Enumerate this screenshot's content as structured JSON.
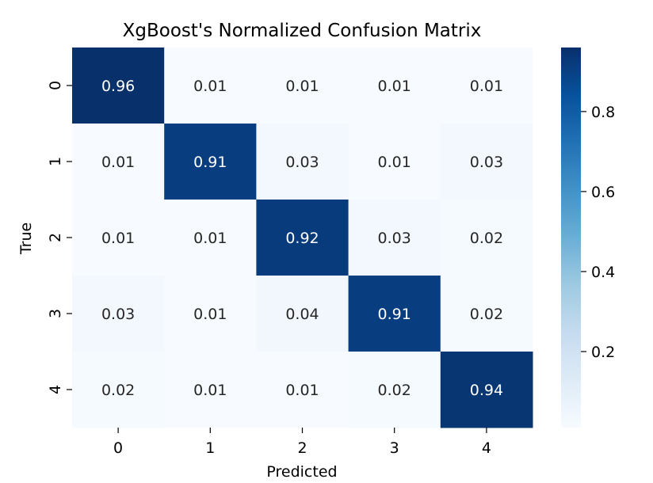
{
  "chart_data": {
    "type": "heatmap",
    "title": "XgBoost's Normalized Confusion Matrix",
    "xlabel": "Predicted",
    "ylabel": "True",
    "x_categories": [
      "0",
      "1",
      "2",
      "3",
      "4"
    ],
    "y_categories": [
      "0",
      "1",
      "2",
      "3",
      "4"
    ],
    "values": [
      [
        0.96,
        0.01,
        0.01,
        0.01,
        0.01
      ],
      [
        0.01,
        0.91,
        0.03,
        0.01,
        0.03
      ],
      [
        0.01,
        0.01,
        0.92,
        0.03,
        0.02
      ],
      [
        0.03,
        0.01,
        0.04,
        0.91,
        0.02
      ],
      [
        0.02,
        0.01,
        0.01,
        0.02,
        0.94
      ]
    ],
    "value_labels": [
      [
        "0.96",
        "0.01",
        "0.01",
        "0.01",
        "0.01"
      ],
      [
        "0.01",
        "0.91",
        "0.03",
        "0.01",
        "0.03"
      ],
      [
        "0.01",
        "0.01",
        "0.92",
        "0.03",
        "0.02"
      ],
      [
        "0.03",
        "0.01",
        "0.04",
        "0.91",
        "0.02"
      ],
      [
        "0.02",
        "0.01",
        "0.01",
        "0.02",
        "0.94"
      ]
    ],
    "colormap": "Blues",
    "colorbar": {
      "range": [
        0.01,
        0.96
      ],
      "ticks": [
        0.2,
        0.4,
        0.6,
        0.8
      ],
      "tick_labels": [
        "0.2",
        "0.4",
        "0.6",
        "0.8"
      ]
    },
    "colors": {
      "low": "#f7fbff",
      "high": "#08306b",
      "text_dark": "#262626",
      "text_light": "#ffffff"
    },
    "grid": false,
    "legend": "colorbar-right"
  }
}
